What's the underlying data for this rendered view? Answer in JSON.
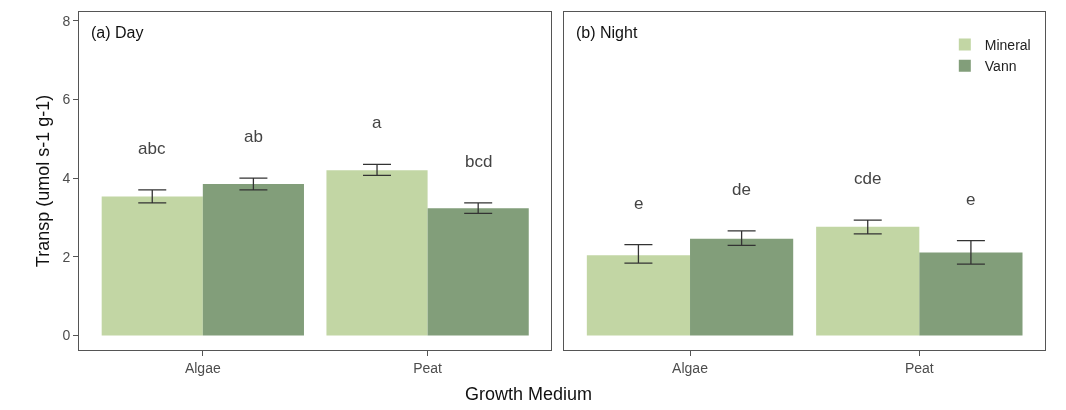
{
  "chart_data": [
    {
      "type": "bar",
      "title": "(a) Day",
      "xlabel": "Growth Medium",
      "ylabel": "Transp (umol s-1 g-1)",
      "categories": [
        "Algae",
        "Peat"
      ],
      "series": [
        {
          "color": "#c2d6a4",
          "values": [
            3.53,
            4.2
          ],
          "errors": [
            [
              3.37,
              3.7
            ],
            [
              4.07,
              4.35
            ]
          ],
          "value_labels": [
            "abc",
            "a"
          ]
        },
        {
          "color": "#829e7a",
          "values": [
            3.85,
            3.23
          ],
          "errors": [
            [
              3.7,
              4.0
            ],
            [
              3.1,
              3.37
            ]
          ],
          "value_labels": [
            "ab",
            "bcd"
          ]
        }
      ],
      "ylim": [
        -0.37,
        8.22
      ],
      "yticks": [
        0,
        2,
        4,
        6,
        8
      ]
    },
    {
      "type": "bar",
      "title": "(b) Night",
      "categories": [
        "Algae",
        "Peat"
      ],
      "series": [
        {
          "name": "Mineral",
          "color": "#c2d6a4",
          "values": [
            2.04,
            2.76
          ],
          "errors": [
            [
              1.84,
              2.31
            ],
            [
              2.58,
              2.93
            ]
          ],
          "value_labels": [
            "e",
            "cde"
          ]
        },
        {
          "name": "Vann",
          "color": "#829e7a",
          "values": [
            2.46,
            2.11
          ],
          "errors": [
            [
              2.29,
              2.66
            ],
            [
              1.81,
              2.41
            ]
          ],
          "value_labels": [
            "de",
            "e"
          ]
        }
      ],
      "ylim": [
        -0.37,
        8.22
      ],
      "legend": "top right",
      "tick_labels": "x"
    }
  ]
}
